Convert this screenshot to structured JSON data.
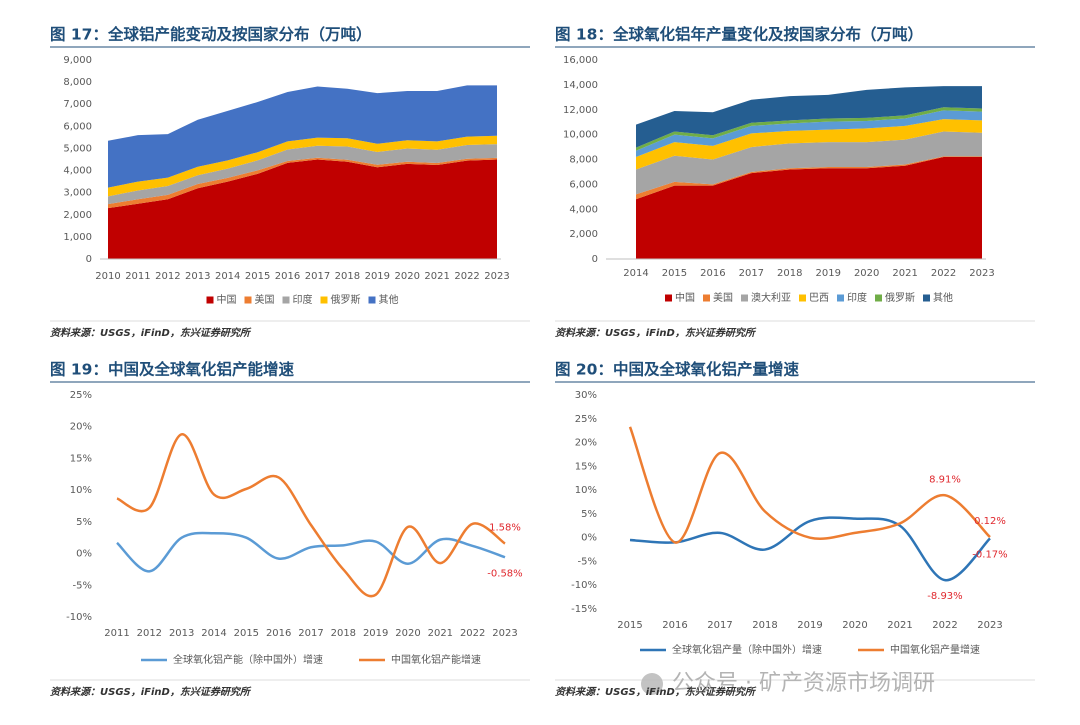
{
  "chart_data": [
    {
      "type": "area",
      "title": "图 17：全球铝产能变动及按国家分布（万吨）",
      "source": "资料来源：USGS，iFinD，东兴证券研究所",
      "legend": "bottom",
      "categories": [
        "2010",
        "2011",
        "2012",
        "2013",
        "2014",
        "2015",
        "2016",
        "2017",
        "2018",
        "2019",
        "2020",
        "2021",
        "2022",
        "2023"
      ],
      "ylim": [
        0,
        9000
      ],
      "yticks": [
        0,
        {
          "value": 1000,
          "label": "1,000"
        },
        {
          "value": 2000,
          "label": "2,000"
        },
        {
          "value": 3000,
          "label": "3,000"
        },
        {
          "value": 4000,
          "label": "4,000"
        },
        {
          "value": 5000,
          "label": "5,000"
        },
        {
          "value": 6000,
          "label": "6,000"
        },
        {
          "value": 7000,
          "label": "7,000"
        },
        {
          "value": 8000,
          "label": "8,000"
        },
        {
          "value": 9000,
          "label": "9,000"
        }
      ],
      "series": [
        {
          "name": "中国",
          "color": "#c00000",
          "values": [
            2300,
            2500,
            2700,
            3200,
            3500,
            3850,
            4350,
            4500,
            4400,
            4150,
            4300,
            4250,
            4450,
            4500
          ]
        },
        {
          "name": "美国",
          "color": "#ed7d31",
          "values": [
            180,
            200,
            200,
            190,
            170,
            160,
            80,
            80,
            90,
            110,
            100,
            90,
            85,
            75
          ]
        },
        {
          "name": "印度",
          "color": "#a5a5a5",
          "values": [
            350,
            400,
            400,
            400,
            420,
            450,
            520,
            540,
            600,
            580,
            600,
            600,
            620,
            620
          ]
        },
        {
          "name": "俄罗斯",
          "color": "#ffc000",
          "values": [
            400,
            400,
            380,
            380,
            370,
            370,
            370,
            370,
            370,
            370,
            370,
            380,
            380,
            380
          ]
        },
        {
          "name": "其他",
          "color": "#4472c4",
          "values": [
            2120,
            2100,
            1970,
            2130,
            2240,
            2270,
            2230,
            2310,
            2240,
            2290,
            2230,
            2280,
            2315,
            2275
          ]
        }
      ]
    },
    {
      "type": "area",
      "title": "图 18：全球氧化铝年产量变化及按国家分布（万吨）",
      "source": "资料来源：USGS，iFinD，东兴证券研究所",
      "legend": "bottom",
      "categories": [
        "2014",
        "2015",
        "2016",
        "2017",
        "2018",
        "2019",
        "2020",
        "2021",
        "2022",
        "2023"
      ],
      "ylim": [
        0,
        16000
      ],
      "yticks": [
        0,
        {
          "value": 2000,
          "label": "2,000"
        },
        {
          "value": 4000,
          "label": "4,000"
        },
        {
          "value": 6000,
          "label": "6,000"
        },
        {
          "value": 8000,
          "label": "8,000"
        },
        {
          "value": 10000,
          "label": "10,000"
        },
        {
          "value": 12000,
          "label": "12,000"
        },
        {
          "value": 14000,
          "label": "14,000"
        },
        {
          "value": 16000,
          "label": "16,000"
        }
      ],
      "series": [
        {
          "name": "中国",
          "color": "#c00000",
          "values": [
            4800,
            5900,
            5900,
            6900,
            7200,
            7300,
            7300,
            7500,
            8200,
            8200
          ]
        },
        {
          "name": "美国",
          "color": "#ed7d31",
          "values": [
            400,
            300,
            100,
            100,
            100,
            100,
            100,
            100,
            50,
            50
          ]
        },
        {
          "name": "澳大利亚",
          "color": "#a5a5a5",
          "values": [
            2000,
            2100,
            2000,
            2000,
            2000,
            2000,
            2000,
            2000,
            2000,
            1900
          ]
        },
        {
          "name": "巴西",
          "color": "#ffc000",
          "values": [
            1000,
            1100,
            1100,
            1100,
            1000,
            1000,
            1100,
            1100,
            1000,
            1000
          ]
        },
        {
          "name": "印度",
          "color": "#5b9bd5",
          "values": [
            500,
            600,
            600,
            600,
            600,
            650,
            600,
            600,
            700,
            700
          ]
        },
        {
          "name": "俄罗斯",
          "color": "#70ad47",
          "values": [
            250,
            250,
            250,
            250,
            250,
            250,
            250,
            250,
            250,
            250
          ]
        },
        {
          "name": "其他",
          "color": "#255e91",
          "values": [
            1850,
            1650,
            1850,
            1850,
            1950,
            1900,
            2250,
            2250,
            1700,
            1800
          ]
        }
      ]
    },
    {
      "type": "line",
      "title": "图 19：中国及全球氧化铝产能增速",
      "source": "资料来源：USGS，iFinD，东兴证券研究所",
      "legend": "bottom",
      "categories": [
        "2011",
        "2012",
        "2013",
        "2014",
        "2015",
        "2016",
        "2017",
        "2018",
        "2019",
        "2020",
        "2021",
        "2022",
        "2023"
      ],
      "ylim": [
        -10,
        25
      ],
      "yticks": [
        {
          "value": -10,
          "label": "-10%"
        },
        {
          "value": -5,
          "label": "-5%"
        },
        {
          "value": 0,
          "label": "0%"
        },
        {
          "value": 5,
          "label": "5%"
        },
        {
          "value": 10,
          "label": "10%"
        },
        {
          "value": 15,
          "label": "15%"
        },
        {
          "value": 20,
          "label": "20%"
        },
        {
          "value": 25,
          "label": "25%"
        }
      ],
      "series": [
        {
          "name": "全球氧化铝产能（除中国外）增速",
          "color": "#5b9bd5",
          "values": [
            1.7,
            -2.8,
            2.5,
            3.2,
            2.5,
            -0.8,
            1,
            1.3,
            1.9,
            -1.6,
            2.2,
            1.2,
            -0.58
          ],
          "value_labels": [
            null,
            null,
            null,
            null,
            null,
            null,
            null,
            null,
            null,
            null,
            null,
            null,
            "-0.58%"
          ]
        },
        {
          "name": "中国氧化铝产能增速",
          "color": "#ed7d31",
          "values": [
            8.7,
            7.2,
            18.8,
            9.3,
            10.2,
            12,
            4.5,
            -2.5,
            -6.5,
            4.2,
            -1.5,
            4.7,
            1.58
          ],
          "value_labels": [
            null,
            null,
            null,
            null,
            null,
            null,
            null,
            null,
            null,
            null,
            null,
            null,
            "1.58%"
          ]
        }
      ]
    },
    {
      "type": "line",
      "title": "图 20：中国及全球氧化铝产量增速",
      "source": "资料来源：USGS，iFinD，东兴证券研究所",
      "legend": "bottom",
      "categories": [
        "2015",
        "2016",
        "2017",
        "2018",
        "2019",
        "2020",
        "2021",
        "2022",
        "2023"
      ],
      "ylim": [
        -15,
        30
      ],
      "yticks": [
        {
          "value": -15,
          "label": "-15%"
        },
        {
          "value": -10,
          "label": "-10%"
        },
        {
          "value": -5,
          "label": "-5%"
        },
        {
          "value": 0,
          "label": "0%"
        },
        {
          "value": 5,
          "label": "5%"
        },
        {
          "value": 10,
          "label": "10%"
        },
        {
          "value": 15,
          "label": "15%"
        },
        {
          "value": 20,
          "label": "20%"
        },
        {
          "value": 25,
          "label": "25%"
        },
        {
          "value": 30,
          "label": "30%"
        }
      ],
      "series": [
        {
          "name": "全球氧化铝产量（除中国外）增速",
          "color": "#2e75b6",
          "values": [
            -0.5,
            -1,
            1,
            -2.5,
            3.5,
            4,
            2.5,
            -8.93,
            -0.17
          ],
          "value_labels": [
            null,
            null,
            null,
            null,
            null,
            null,
            null,
            "-8.93%",
            "-0.17%"
          ]
        },
        {
          "name": "中国氧化铝产量增速",
          "color": "#ed7d31",
          "values": [
            23.3,
            -1,
            17.8,
            5.5,
            0,
            1,
            3,
            8.91,
            0.12
          ],
          "value_labels": [
            null,
            null,
            null,
            null,
            null,
            null,
            null,
            "8.91%",
            "0.12%"
          ]
        }
      ]
    }
  ],
  "watermark": "公众号 · 矿产资源市场调研"
}
